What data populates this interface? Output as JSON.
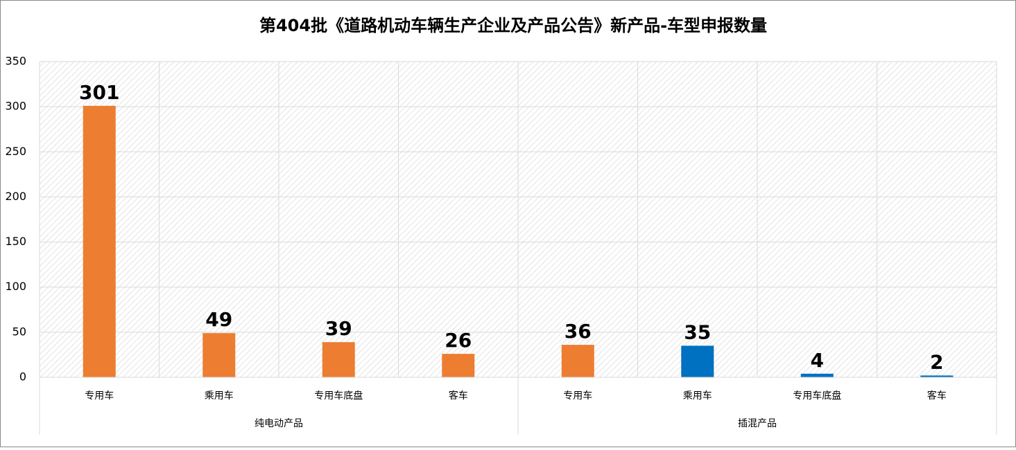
{
  "chart_data": {
    "type": "bar",
    "title": "第404批《道路机动车辆生产企业及产品公告》新产品-车型申报数量",
    "groups": [
      {
        "name": "纯电动产品",
        "categories": [
          "专用车",
          "乘用车",
          "专用车底盘",
          "客车"
        ],
        "values": [
          301,
          49,
          39,
          26
        ],
        "colors": [
          "#ed7d31",
          "#ed7d31",
          "#ed7d31",
          "#ed7d31"
        ]
      },
      {
        "name": "插混产品",
        "categories": [
          "专用车",
          "乘用车",
          "专用车底盘",
          "客车"
        ],
        "values": [
          36,
          35,
          4,
          2
        ],
        "colors": [
          "#ed7d31",
          "#0070c0",
          "#0070c0",
          "#0070c0"
        ]
      }
    ],
    "ylim": [
      0,
      350
    ],
    "yticks": [
      0,
      50,
      100,
      150,
      200,
      250,
      300,
      350
    ],
    "grid": true
  }
}
